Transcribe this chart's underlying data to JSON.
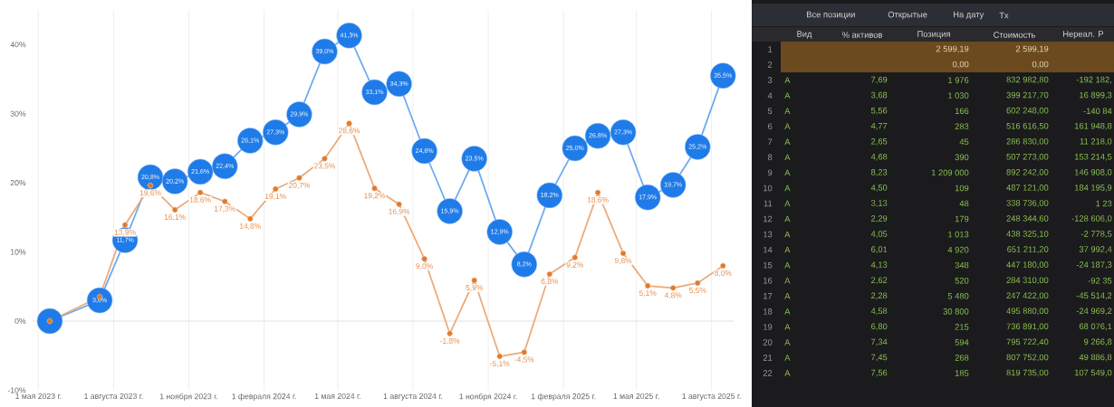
{
  "chart_data": [
    {
      "type": "line",
      "x": [
        "2023-05-15",
        "2023-07-15",
        "2023-08-15",
        "2023-09-15",
        "2023-10-15",
        "2023-11-15",
        "2023-12-15",
        "2024-01-15",
        "2024-02-15",
        "2024-03-15",
        "2024-04-15",
        "2024-05-15",
        "2024-06-15",
        "2024-07-15",
        "2024-08-15",
        "2024-09-15",
        "2024-10-15",
        "2024-11-15",
        "2024-12-15",
        "2025-01-15",
        "2025-02-15",
        "2025-03-15",
        "2025-04-15",
        "2025-05-15",
        "2025-06-15",
        "2025-07-15",
        "2025-08-15"
      ],
      "series": [
        {
          "color": "#1f7be8",
          "marker": "circle",
          "line_style": "solid",
          "values": [
            0,
            3.0,
            11.7,
            20.8,
            20.2,
            21.6,
            22.4,
            26.1,
            27.3,
            29.9,
            39.0,
            41.3,
            33.1,
            34.3,
            24.6,
            15.9,
            23.5,
            12.9,
            8.2,
            18.2,
            25.0,
            26.8,
            27.3,
            17.9,
            19.7,
            25.2,
            35.5
          ],
          "value_labels": [
            null,
            "3,0%",
            "11,7%",
            "20,8%",
            "20,2%",
            "21,6%",
            "22,4%",
            "26,1%",
            "27,3%",
            "29,9%",
            "39,0%",
            "41,3%",
            "33,1%",
            "34,3%",
            "24,6%",
            "15,9%",
            "23,5%",
            "12,9%",
            "8,2%",
            "18,2%",
            "25,0%",
            "26,8%",
            "27,3%",
            "17,9%",
            "19,7%",
            "25,2%",
            "35,5%"
          ]
        },
        {
          "color": "#e07a2e",
          "marker": "circle",
          "line_style": "solid",
          "values": [
            0,
            3.5,
            13.9,
            19.6,
            16.1,
            18.6,
            17.3,
            14.8,
            19.1,
            20.7,
            23.5,
            28.6,
            19.2,
            16.9,
            9.0,
            -1.8,
            5.9,
            -5.1,
            -4.5,
            6.8,
            9.2,
            18.6,
            9.8,
            5.1,
            4.8,
            5.5,
            8.0
          ],
          "value_labels": [
            null,
            null,
            "13,9%",
            "19,6%",
            "16,1%",
            "18,6%",
            "17,3%",
            "14,8%",
            "19,1%",
            "20,7%",
            "23,5%",
            "28,6%",
            "19,2%",
            "16,9%",
            "9,0%",
            "-1,8%",
            "5,9%",
            "-5,1%",
            "-4,5%",
            "6,8%",
            "9,2%",
            "18,6%",
            "9,8%",
            "5,1%",
            "4,8%",
            "5,5%",
            "8,0%"
          ]
        }
      ],
      "xlim": [
        "2023-04-24",
        "2025-08-28"
      ],
      "xticks": [
        {
          "value": "2023-05-01",
          "label": "1 мая 2023 г."
        },
        {
          "value": "2023-08-01",
          "label": "1 августа 2023 г."
        },
        {
          "value": "2023-11-01",
          "label": "1 ноября 2023 г."
        },
        {
          "value": "2024-02-01",
          "label": "1 февраля 2024 г."
        },
        {
          "value": "2024-05-01",
          "label": "1 мая 2024 г."
        },
        {
          "value": "2024-08-01",
          "label": "1 августа 2024 г."
        },
        {
          "value": "2024-11-01",
          "label": "1 ноября 2024 г."
        },
        {
          "value": "2025-02-01",
          "label": "1 февраля 2025 г."
        },
        {
          "value": "2025-05-01",
          "label": "1 мая 2025 г."
        },
        {
          "value": "2025-08-01",
          "label": "1 августа 2025 г."
        }
      ],
      "ylim": [
        -10,
        45
      ],
      "yticks": [
        {
          "value": -10,
          "label": "-10%"
        },
        {
          "value": 0,
          "label": "0%"
        },
        {
          "value": 10,
          "label": "10%"
        },
        {
          "value": 20,
          "label": "20%"
        },
        {
          "value": 30,
          "label": "30%"
        },
        {
          "value": 40,
          "label": "40%"
        }
      ],
      "grid": "x",
      "ref_lines": [
        {
          "axis": "y",
          "value": 0,
          "color": "#d9d9d9"
        }
      ]
    },
    {
      "type": "other",
      "annotations": [
        "Все позиции",
        "Открытые",
        "На дату",
        "Tx"
      ],
      "categories": [
        "Вид",
        "% активов",
        "Позиция",
        "Стоимость",
        "Нереал. Р"
      ],
      "y_categories": [
        "1",
        "2",
        "3",
        "4",
        "5",
        "6",
        "7",
        "8",
        "9",
        "10",
        "11",
        "12",
        "13",
        "14",
        "15",
        "16",
        "17",
        "18",
        "19",
        "20",
        "21",
        "22"
      ],
      "cell_labels": [
        [
          null,
          null,
          "2 599,19",
          "2 599,19",
          null
        ],
        [
          null,
          null,
          "0,00",
          "0,00",
          null
        ],
        [
          "A",
          "7,69",
          "1 976",
          "832 982,80",
          "-192 182,"
        ],
        [
          "A",
          "3,68",
          "1 030",
          "399 217,70",
          "16 899,3"
        ],
        [
          "A",
          "5,56",
          "166",
          "602 248,00",
          "-140 84"
        ],
        [
          "A",
          "4,77",
          "283",
          "516 616,50",
          "161 948,8"
        ],
        [
          "A",
          "2,65",
          "45",
          "286 830,00",
          "11 218,0"
        ],
        [
          "A",
          "4,68",
          "390",
          "507 273,00",
          "153 214,5"
        ],
        [
          "A",
          "8,23",
          "1 209 000",
          "892 242,00",
          "146 908,0"
        ],
        [
          "A",
          "4,50",
          "109",
          "487 121,00",
          "184 195,9"
        ],
        [
          "A",
          "3,13",
          "48",
          "338 736,00",
          "1 23"
        ],
        [
          "A",
          "2,29",
          "179",
          "248 344,60",
          "-128 606,0"
        ],
        [
          "A",
          "4,05",
          "1 013",
          "438 325,10",
          "-2 778,5"
        ],
        [
          "A",
          "6,01",
          "4 920",
          "651 211,20",
          "37 992,4"
        ],
        [
          "A",
          "4,13",
          "348",
          "447 180,00",
          "-24 187,3"
        ],
        [
          "A",
          "2,62",
          "520",
          "284 310,00",
          "-92 35"
        ],
        [
          "A",
          "2,28",
          "5 480",
          "247 422,00",
          "-45 514,2"
        ],
        [
          "A",
          "4,58",
          "30 800",
          "495 880,00",
          "-24 969,2"
        ],
        [
          "A",
          "6,80",
          "215",
          "736 891,00",
          "68 076,1"
        ],
        [
          "A",
          "7,34",
          "594",
          "795 722,40",
          "9 266,8"
        ],
        [
          "A",
          "7,45",
          "268",
          "807 752,00",
          "49 886,8"
        ],
        [
          "A",
          "7,56",
          "185",
          "819 735,00",
          "107 549,0"
        ]
      ]
    }
  ]
}
